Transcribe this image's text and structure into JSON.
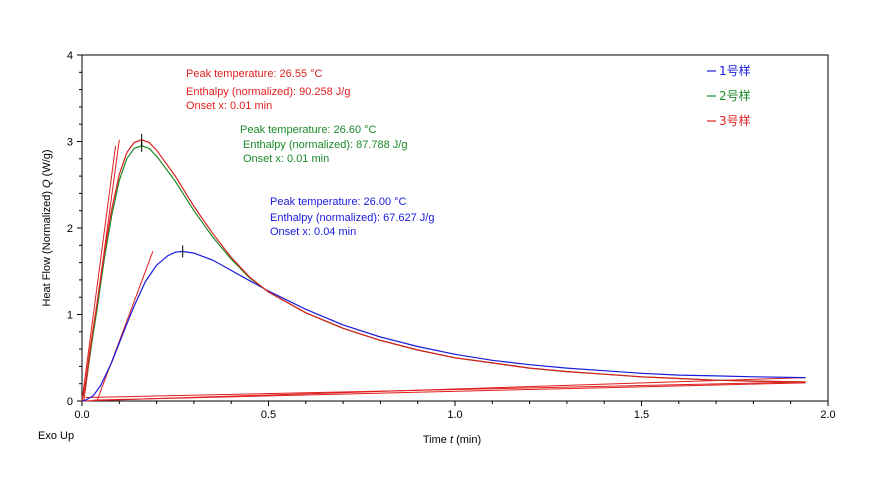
{
  "chart_data": {
    "type": "line",
    "xlabel_prefix": "Time ",
    "xlabel_var": "t",
    "xlabel_suffix": " (min)",
    "ylabel_prefix": "Heat Flow (Normalized) ",
    "ylabel_var": "Q",
    "ylabel_suffix": " (W/g)",
    "corner_label": "Exo Up",
    "xlim": [
      0.0,
      2.0
    ],
    "ylim": [
      0,
      4
    ],
    "x_ticks": [
      "0.0",
      "0.5",
      "1.0",
      "1.5",
      "2.0"
    ],
    "y_ticks": [
      "0",
      "1",
      "2",
      "3",
      "4"
    ],
    "grid": false,
    "legend_position": "top-right",
    "series": [
      {
        "name": "1号样",
        "color": "#1a1adc",
        "peak_x": 0.27,
        "peak_y": 1.73,
        "points": [
          [
            0.0,
            0.0
          ],
          [
            0.01,
            0.01
          ],
          [
            0.03,
            0.06
          ],
          [
            0.05,
            0.18
          ],
          [
            0.08,
            0.45
          ],
          [
            0.11,
            0.78
          ],
          [
            0.14,
            1.1
          ],
          [
            0.17,
            1.38
          ],
          [
            0.2,
            1.57
          ],
          [
            0.23,
            1.68
          ],
          [
            0.25,
            1.72
          ],
          [
            0.27,
            1.73
          ],
          [
            0.3,
            1.71
          ],
          [
            0.35,
            1.63
          ],
          [
            0.4,
            1.51
          ],
          [
            0.45,
            1.39
          ],
          [
            0.5,
            1.27
          ],
          [
            0.6,
            1.06
          ],
          [
            0.7,
            0.88
          ],
          [
            0.8,
            0.74
          ],
          [
            0.9,
            0.63
          ],
          [
            1.0,
            0.54
          ],
          [
            1.1,
            0.47
          ],
          [
            1.2,
            0.42
          ],
          [
            1.3,
            0.38
          ],
          [
            1.4,
            0.35
          ],
          [
            1.5,
            0.32
          ],
          [
            1.6,
            0.3
          ],
          [
            1.7,
            0.29
          ],
          [
            1.8,
            0.28
          ],
          [
            1.94,
            0.27
          ]
        ],
        "annotation": [
          "Peak temperature: 26.00 °C",
          "Enthalpy (normalized): 67.627 J/g",
          "Onset x: 0.04 min"
        ]
      },
      {
        "name": "2号样",
        "color": "#1a8a2a",
        "peak_x": 0.16,
        "peak_y": 2.95,
        "points": [
          [
            0.0,
            0.0
          ],
          [
            0.01,
            0.2
          ],
          [
            0.02,
            0.5
          ],
          [
            0.04,
            1.05
          ],
          [
            0.06,
            1.65
          ],
          [
            0.08,
            2.15
          ],
          [
            0.1,
            2.55
          ],
          [
            0.12,
            2.8
          ],
          [
            0.14,
            2.92
          ],
          [
            0.16,
            2.95
          ],
          [
            0.18,
            2.92
          ],
          [
            0.2,
            2.83
          ],
          [
            0.25,
            2.54
          ],
          [
            0.3,
            2.2
          ],
          [
            0.35,
            1.9
          ],
          [
            0.4,
            1.64
          ],
          [
            0.45,
            1.42
          ],
          [
            0.5,
            1.26
          ],
          [
            0.6,
            1.02
          ],
          [
            0.7,
            0.84
          ],
          [
            0.8,
            0.7
          ],
          [
            0.9,
            0.59
          ],
          [
            1.0,
            0.5
          ],
          [
            1.1,
            0.44
          ],
          [
            1.2,
            0.38
          ],
          [
            1.3,
            0.34
          ],
          [
            1.4,
            0.31
          ],
          [
            1.5,
            0.28
          ],
          [
            1.6,
            0.26
          ],
          [
            1.7,
            0.24
          ],
          [
            1.8,
            0.23
          ],
          [
            1.94,
            0.22
          ]
        ],
        "annotation": [
          "Peak temperature: 26.60 °C",
          "Enthalpy (normalized): 87.788 J/g",
          "Onset x: 0.01 min"
        ]
      },
      {
        "name": "3号样",
        "color": "#e01e1e",
        "peak_x": 0.16,
        "peak_y": 3.02,
        "points": [
          [
            0.0,
            0.0
          ],
          [
            0.01,
            0.22
          ],
          [
            0.02,
            0.55
          ],
          [
            0.04,
            1.12
          ],
          [
            0.06,
            1.72
          ],
          [
            0.08,
            2.22
          ],
          [
            0.1,
            2.62
          ],
          [
            0.12,
            2.87
          ],
          [
            0.14,
            2.99
          ],
          [
            0.16,
            3.02
          ],
          [
            0.18,
            2.99
          ],
          [
            0.2,
            2.9
          ],
          [
            0.25,
            2.6
          ],
          [
            0.3,
            2.25
          ],
          [
            0.35,
            1.94
          ],
          [
            0.4,
            1.66
          ],
          [
            0.45,
            1.43
          ],
          [
            0.5,
            1.26
          ],
          [
            0.6,
            1.02
          ],
          [
            0.7,
            0.84
          ],
          [
            0.8,
            0.7
          ],
          [
            0.9,
            0.59
          ],
          [
            1.0,
            0.5
          ],
          [
            1.1,
            0.44
          ],
          [
            1.2,
            0.38
          ],
          [
            1.3,
            0.34
          ],
          [
            1.4,
            0.31
          ],
          [
            1.5,
            0.28
          ],
          [
            1.6,
            0.26
          ],
          [
            1.7,
            0.24
          ],
          [
            1.8,
            0.23
          ],
          [
            1.94,
            0.22
          ]
        ],
        "annotation": [
          "Peak temperature: 26.55 °C",
          "Enthalpy (normalized): 90.258 J/g",
          "Onset x: 0.01 min"
        ]
      }
    ],
    "baselines": [
      {
        "color": "#e01e1e",
        "x1": 0.0,
        "y1": 0.0,
        "x2": 1.94,
        "y2": 0.27
      },
      {
        "color": "#e01e1e",
        "x1": 0.01,
        "y1": 0.04,
        "x2": 1.94,
        "y2": 0.22
      },
      {
        "color": "#e01e1e",
        "x1": 0.03,
        "y1": 0.01,
        "x2": 1.94,
        "y2": 0.21
      }
    ],
    "tangents": [
      {
        "color": "#e01e1e",
        "x1": 0.005,
        "y1": 0.0,
        "x2": 0.1,
        "y2": 3.02
      },
      {
        "color": "#e01e1e",
        "x1": 0.0,
        "y1": 0.0,
        "x2": 0.09,
        "y2": 2.95
      },
      {
        "color": "#e01e1e",
        "x1": 0.04,
        "y1": 0.0,
        "x2": 0.19,
        "y2": 1.73
      }
    ]
  }
}
